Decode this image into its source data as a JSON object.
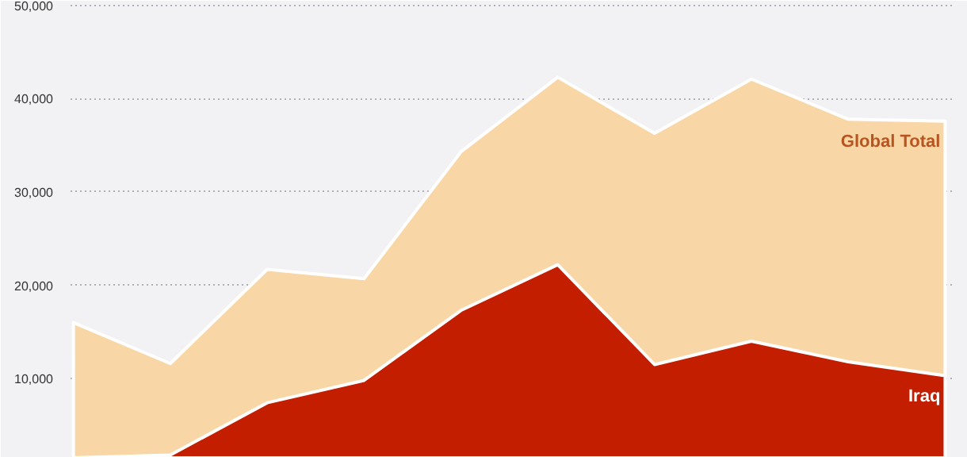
{
  "chart_data": {
    "type": "area",
    "categories": [
      null,
      null,
      null,
      null,
      null,
      null,
      null,
      null,
      null,
      null
    ],
    "series": [
      {
        "name": "Global Total",
        "color": "#f8d6a5",
        "values": [
          16000,
          11600,
          21700,
          20700,
          34300,
          42300,
          36300,
          42100,
          37800,
          37600
        ]
      },
      {
        "name": "Iraq",
        "color": "#c41e00",
        "values": [
          1500,
          1800,
          7400,
          9800,
          17300,
          22200,
          11500,
          14000,
          11800,
          10300
        ]
      }
    ],
    "ylim": [
      1500,
      50500
    ],
    "yticks": [
      {
        "value": 10000,
        "label": "10,000"
      },
      {
        "value": 20000,
        "label": "20,000"
      },
      {
        "value": 30000,
        "label": "30,000"
      },
      {
        "value": 40000,
        "label": "40,000"
      },
      {
        "value": 50000,
        "label": "50,000"
      }
    ],
    "grid": "y",
    "tick_labels": "y"
  }
}
